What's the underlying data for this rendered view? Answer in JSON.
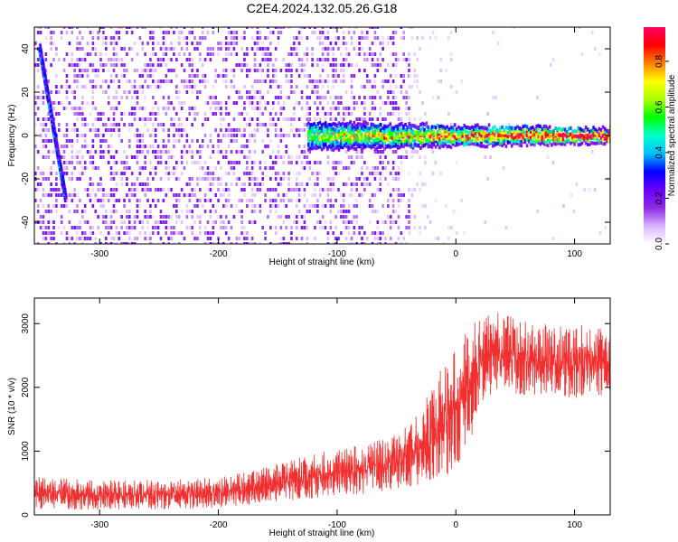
{
  "title": "C2E4.2024.132.05.26.G18",
  "chart_data": [
    {
      "type": "heatmap",
      "xlabel": "Height of straight line (km)",
      "ylabel": "Frequency (Hz)",
      "xlim": [
        -355,
        130
      ],
      "ylim": [
        -50,
        50
      ],
      "x_ticks": [
        -300,
        -200,
        -100,
        0,
        100
      ],
      "y_ticks": [
        -40,
        -20,
        0,
        20,
        40
      ],
      "grid": false,
      "colorbar": {
        "label": "Normalized spectral amplitude",
        "range": [
          0,
          0.95
        ],
        "ticks": [
          0.0,
          0.2,
          0.4,
          0.6,
          0.8
        ],
        "tick_labels": [
          "0.0",
          "0.2",
          "0.4",
          "0.6",
          "0.8"
        ],
        "colors": [
          "#ffffff",
          "#d9b3ff",
          "#8a2be2",
          "#6a00ff",
          "#0000ff",
          "#00bfff",
          "#00ffcc",
          "#00ff00",
          "#aaff00",
          "#ffff00",
          "#ff8000",
          "#ff0000",
          "#ff0066"
        ]
      },
      "features": [
        {
          "name": "",
          "description": "diagonal streak",
          "x": [
            -352,
            -330
          ],
          "y": [
            40,
            -30
          ],
          "amplitude": 0.3
        },
        {
          "name": "",
          "description": "main carrier band",
          "x": [
            -125,
            130
          ],
          "y": [
            0,
            0
          ],
          "amplitude": 0.8
        }
      ],
      "noise_region": {
        "x": [
          -355,
          -40
        ],
        "y": [
          -50,
          50
        ],
        "amplitude": 0.1
      },
      "sparse_region": {
        "x": [
          -40,
          130
        ],
        "y": [
          -50,
          50
        ],
        "amplitude": 0.05
      }
    },
    {
      "type": "line",
      "xlabel": "Height of straight line (km)",
      "ylabel": "SNR (10 * v/v)",
      "xlim": [
        -355,
        130
      ],
      "ylim": [
        0,
        3400
      ],
      "x_ticks": [
        -300,
        -200,
        -100,
        0,
        100
      ],
      "y_ticks": [
        0,
        1000,
        2000,
        3000
      ],
      "grid": false,
      "series_color": "#f03030",
      "envelope": {
        "x": [
          -355,
          -300,
          -250,
          -200,
          -150,
          -100,
          -60,
          -40,
          -20,
          -10,
          0,
          10,
          20,
          30,
          50,
          80,
          100,
          130
        ],
        "low": [
          80,
          80,
          80,
          100,
          200,
          300,
          350,
          400,
          500,
          600,
          700,
          1000,
          1700,
          1900,
          1900,
          1800,
          1800,
          1900
        ],
        "high": [
          600,
          550,
          550,
          600,
          800,
          1050,
          1200,
          1400,
          2000,
          2400,
          2600,
          2900,
          3100,
          3200,
          3100,
          3000,
          3000,
          2900
        ]
      }
    }
  ]
}
